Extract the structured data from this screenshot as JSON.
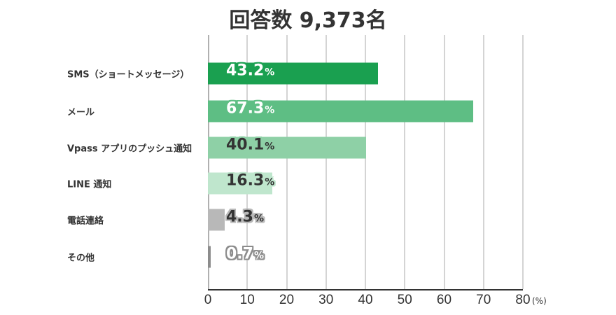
{
  "title": "回答数 9,373名",
  "chart_data": {
    "type": "bar",
    "orientation": "horizontal",
    "title": "回答数 9,373名",
    "categories": [
      "SMS（ショートメッセージ）",
      "メール",
      "Vpass アプリのプッシュ通知",
      "LINE 通知",
      "電話連絡",
      "その他"
    ],
    "values": [
      43.2,
      67.3,
      40.1,
      16.3,
      4.3,
      0.7
    ],
    "value_labels": [
      "43.2",
      "67.3",
      "40.1",
      "16.3",
      "4.3",
      "0.7"
    ],
    "value_suffix": "%",
    "bar_colors": [
      "#1aa050",
      "#5ebe84",
      "#8ed0a6",
      "#bfe6cd",
      "#b8b8b8",
      "#8c8c8c"
    ],
    "label_colors": [
      "#ffffff",
      "#ffffff",
      "#333333",
      "#333333",
      "#333333",
      "#ffffff"
    ],
    "label_outline_colors": [
      "#1aa050",
      "#5ebe84",
      "#8ed0a6",
      "#bfe6cd",
      "#b8b8b8",
      "#8c8c8c"
    ],
    "xlabel": "",
    "x_unit": "(%)",
    "ylabel": "",
    "xlim": [
      0,
      80
    ],
    "xticks": [
      "0",
      "10",
      "20",
      "30",
      "40",
      "50",
      "60",
      "70",
      "80"
    ],
    "grid": true,
    "legend": "none"
  }
}
